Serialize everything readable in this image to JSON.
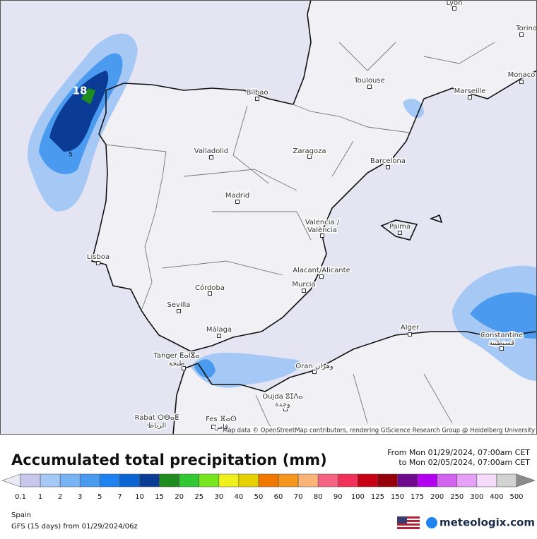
{
  "map": {
    "cities": [
      {
        "name": [
          "Lyon"
        ]
      },
      {
        "name": [
          "Torino"
        ]
      },
      {
        "name": [
          "Monaco"
        ]
      },
      {
        "name": [
          "Toulouse"
        ]
      },
      {
        "name": [
          "Marseille"
        ]
      },
      {
        "name": [
          "Bilbao"
        ]
      },
      {
        "name": [
          "Valladolid"
        ]
      },
      {
        "name": [
          "Zaragoza"
        ]
      },
      {
        "name": [
          "Barcelona"
        ]
      },
      {
        "name": [
          "Madrid"
        ]
      },
      {
        "name": [
          "Valencia /",
          "València"
        ]
      },
      {
        "name": [
          "Palma"
        ]
      },
      {
        "name": [
          "Lisboa"
        ]
      },
      {
        "name": [
          "Alacant/Alicante"
        ]
      },
      {
        "name": [
          "Murcia"
        ]
      },
      {
        "name": [
          "Córdoba"
        ]
      },
      {
        "name": [
          "Sevilla"
        ]
      },
      {
        "name": [
          "Málaga"
        ]
      },
      {
        "name": [
          "Alger"
        ]
      },
      {
        "name": [
          "Constantine",
          "قسنطينة"
        ]
      },
      {
        "name": [
          "Tanger ⵟⴰⵏⴵⴰ",
          "طنجة"
        ]
      },
      {
        "name": [
          "Oran وهران"
        ]
      },
      {
        "name": [
          "Oujda ⵓⵊⴷⴰ",
          "وجدة"
        ]
      },
      {
        "name": [
          "Rabat ⵔⴱⴰⵟ",
          "الرباط"
        ]
      },
      {
        "name": [
          "Fes ⴼⴰⵙ",
          "فاس"
        ]
      }
    ],
    "contour_labels": [
      18,
      5
    ],
    "attribution": "Map data © OpenStreetMap contributors, rendering GIScience Research Group @ Heidelberg University"
  },
  "header": {
    "title": "Accumulated total precipitation (mm)",
    "from": "From Mon 01/29/2024, 07:00am CET",
    "to": "to Mon 02/05/2024, 07:00am CET"
  },
  "legend": {
    "labels": [
      0.1,
      1,
      2,
      3,
      5,
      7,
      10,
      15,
      20,
      25,
      30,
      40,
      50,
      60,
      70,
      80,
      90,
      100,
      125,
      150,
      175,
      200,
      250,
      300,
      400,
      500
    ],
    "colors": [
      "#c8c8ee",
      "#a5c8f5",
      "#78b4f5",
      "#4a9af0",
      "#1e82f0",
      "#0a64d2",
      "#0a3c96",
      "#1e8c1e",
      "#32c832",
      "#78e61e",
      "#f0f01e",
      "#e6d200",
      "#f07800",
      "#f5961e",
      "#fab478",
      "#f56482",
      "#f0325a",
      "#c80014",
      "#96000a",
      "#6e0a8c",
      "#b400f0",
      "#d264f0",
      "#e6a0f5",
      "#f5dcfa",
      "#d2d2d2"
    ],
    "under_color": "#ebebf7",
    "over_color": "#8c8c8c"
  },
  "footer": {
    "region": "Spain",
    "model": "GFS (15 days) from 01/29/2024/06z",
    "brand": "meteologix.com"
  }
}
